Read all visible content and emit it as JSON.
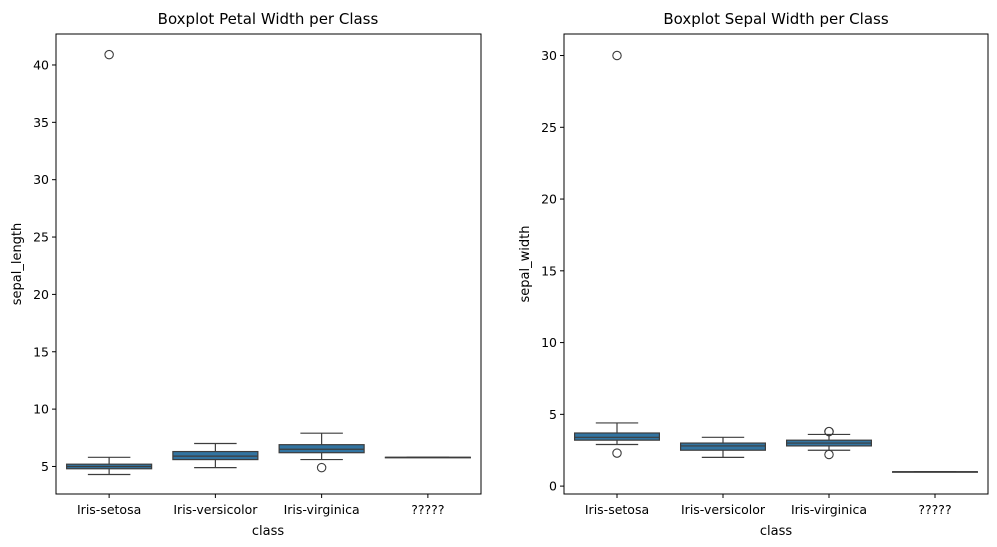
{
  "chart_data": [
    {
      "type": "box",
      "title": "Boxplot Petal Width per Class",
      "xlabel": "class",
      "ylabel": "sepal_length",
      "ylim": [
        2.6,
        42.7
      ],
      "yticks": [
        5,
        10,
        15,
        20,
        25,
        30,
        35,
        40
      ],
      "grid": false,
      "categories": [
        "Iris-setosa",
        "Iris-versicolor",
        "Iris-virginica",
        "?????"
      ],
      "box_color": "#3274a1",
      "line_color": "#3d3d3d",
      "boxes": [
        {
          "category": "Iris-setosa",
          "whisker_low": 4.3,
          "q1": 4.8,
          "median": 5.0,
          "q3": 5.2,
          "whisker_high": 5.8,
          "outliers": [
            40.9
          ]
        },
        {
          "category": "Iris-versicolor",
          "whisker_low": 4.9,
          "q1": 5.6,
          "median": 5.9,
          "q3": 6.3,
          "whisker_high": 7.0,
          "outliers": []
        },
        {
          "category": "Iris-virginica",
          "whisker_low": 5.6,
          "q1": 6.2,
          "median": 6.5,
          "q3": 6.9,
          "whisker_high": 7.9,
          "outliers": [
            4.9
          ]
        },
        {
          "category": "?????",
          "whisker_low": 5.8,
          "q1": 5.8,
          "median": 5.8,
          "q3": 5.8,
          "whisker_high": 5.8,
          "outliers": []
        }
      ]
    },
    {
      "type": "box",
      "title": "Boxplot Sepal Width per Class",
      "xlabel": "class",
      "ylabel": "sepal_width",
      "ylim": [
        -0.55,
        31.5
      ],
      "yticks": [
        0,
        5,
        10,
        15,
        20,
        25,
        30
      ],
      "grid": false,
      "categories": [
        "Iris-setosa",
        "Iris-versicolor",
        "Iris-virginica",
        "?????"
      ],
      "box_color": "#3274a1",
      "line_color": "#3d3d3d",
      "boxes": [
        {
          "category": "Iris-setosa",
          "whisker_low": 2.9,
          "q1": 3.2,
          "median": 3.4,
          "q3": 3.7,
          "whisker_high": 4.4,
          "outliers": [
            2.3,
            30.0
          ]
        },
        {
          "category": "Iris-versicolor",
          "whisker_low": 2.0,
          "q1": 2.5,
          "median": 2.8,
          "q3": 3.0,
          "whisker_high": 3.4,
          "outliers": []
        },
        {
          "category": "Iris-virginica",
          "whisker_low": 2.5,
          "q1": 2.8,
          "median": 3.0,
          "q3": 3.2,
          "whisker_high": 3.6,
          "outliers": [
            2.2,
            3.8,
            3.8
          ]
        },
        {
          "category": "?????",
          "whisker_low": 1.0,
          "q1": 1.0,
          "median": 1.0,
          "q3": 1.0,
          "whisker_high": 1.0,
          "outliers": []
        }
      ]
    }
  ]
}
